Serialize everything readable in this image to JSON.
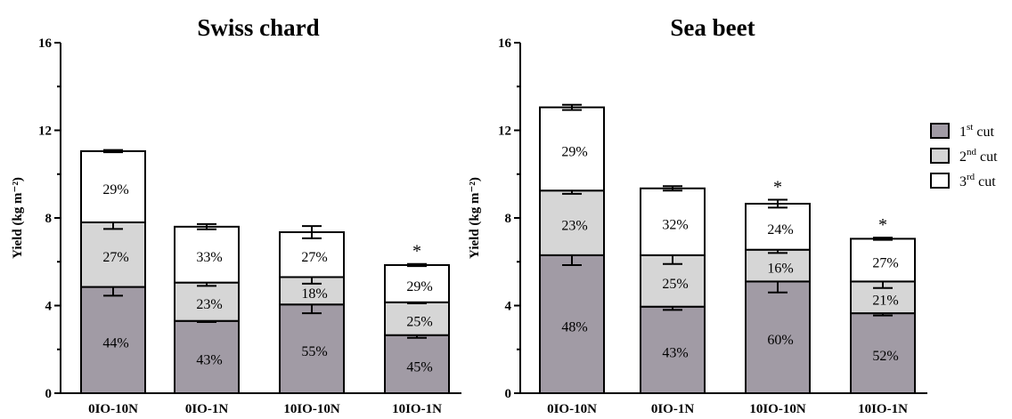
{
  "chart_data": [
    {
      "type": "bar",
      "stacked": true,
      "title": "Swiss chard",
      "ylabel": "Yield (kg m⁻²)",
      "ylim": [
        0,
        16
      ],
      "yticks": [
        "0",
        "4",
        "8",
        "12",
        "16"
      ],
      "categories": [
        "0IO-10N",
        "0IO-1N",
        "10IO-10N",
        "10IO-1N"
      ],
      "series": [
        {
          "name": "1st cut",
          "values": [
            4.85,
            3.3,
            4.05,
            2.65
          ],
          "errors": [
            0.4,
            0.05,
            0.4,
            0.12
          ],
          "labels": [
            "44%",
            "43%",
            "55%",
            "45%"
          ]
        },
        {
          "name": "2nd cut",
          "values": [
            2.95,
            1.75,
            1.25,
            1.5
          ],
          "errors": [
            0.3,
            0.15,
            0.3,
            0.05
          ],
          "labels": [
            "27%",
            "23%",
            "18%",
            "25%"
          ]
        },
        {
          "name": "3rd cut",
          "values": [
            3.25,
            2.55,
            2.05,
            1.7
          ],
          "errors": [
            0.05,
            0.12,
            0.28,
            0.05
          ],
          "labels": [
            "29%",
            "33%",
            "27%",
            "29%"
          ]
        }
      ],
      "significance": [
        "",
        "",
        "",
        "*"
      ]
    },
    {
      "type": "bar",
      "stacked": true,
      "title": "Sea beet",
      "ylabel": "Yield (kg m⁻²)",
      "ylim": [
        0,
        16
      ],
      "yticks": [
        "0",
        "4",
        "8",
        "12",
        "16"
      ],
      "categories": [
        "0IO-10N",
        "0IO-1N",
        "10IO-10N",
        "10IO-1N"
      ],
      "series": [
        {
          "name": "1st cut",
          "values": [
            6.3,
            3.95,
            5.1,
            3.65
          ],
          "errors": [
            0.45,
            0.15,
            0.5,
            0.1
          ],
          "labels": [
            "48%",
            "43%",
            "60%",
            "52%"
          ]
        },
        {
          "name": "2nd cut",
          "values": [
            2.95,
            2.35,
            1.45,
            1.45
          ],
          "errors": [
            0.15,
            0.4,
            0.15,
            0.3
          ],
          "labels": [
            "23%",
            "25%",
            "16%",
            "21%"
          ]
        },
        {
          "name": "3rd cut",
          "values": [
            3.8,
            3.05,
            2.1,
            1.95
          ],
          "errors": [
            0.12,
            0.1,
            0.18,
            0.05
          ],
          "labels": [
            "29%",
            "32%",
            "24%",
            "27%"
          ]
        }
      ],
      "significance": [
        "",
        "",
        "*",
        "*"
      ]
    }
  ],
  "legend": {
    "placement": "right",
    "entries": [
      {
        "ordinal": "1",
        "sup": "st",
        "rest": " cut",
        "color": "#a19ba5"
      },
      {
        "ordinal": "2",
        "sup": "nd",
        "rest": " cut",
        "color": "#d6d6d6"
      },
      {
        "ordinal": "3",
        "sup": "rd",
        "rest": " cut",
        "color": "#ffffff"
      }
    ]
  },
  "colors": {
    "first_cut": "#a19ba5",
    "second_cut": "#d6d6d6",
    "third_cut": "#ffffff",
    "stroke": "#000000"
  }
}
